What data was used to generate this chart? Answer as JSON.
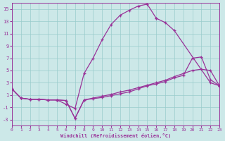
{
  "xlabel": "Windchill (Refroidissement éolien,°C)",
  "background_color": "#cce8e8",
  "line_color": "#993399",
  "grid_color": "#99cccc",
  "xlim": [
    0,
    23
  ],
  "ylim": [
    -4,
    16
  ],
  "xticks": [
    0,
    1,
    2,
    3,
    4,
    5,
    6,
    7,
    8,
    9,
    10,
    11,
    12,
    13,
    14,
    15,
    16,
    17,
    18,
    19,
    20,
    21,
    22,
    23
  ],
  "yticks": [
    -3,
    -1,
    1,
    3,
    5,
    7,
    9,
    11,
    13,
    15
  ],
  "curve1_x": [
    0,
    1,
    2,
    3,
    4,
    5,
    6,
    7,
    8,
    9,
    10,
    11,
    12,
    13,
    14,
    15,
    16
  ],
  "curve1_y": [
    2,
    0.5,
    0.3,
    0.3,
    0.2,
    0.2,
    -0.5,
    -1.2,
    4.5,
    7.0,
    10.0,
    12.5,
    14.0,
    14.8,
    15.5,
    15.8,
    13.5
  ],
  "curve2_x": [
    16,
    17,
    18,
    22,
    23
  ],
  "curve2_y": [
    13.5,
    12.8,
    11.5,
    3.0,
    2.5
  ],
  "curve3_x": [
    0,
    1,
    2,
    3,
    4,
    5,
    6,
    7,
    8,
    9,
    10,
    11,
    12,
    13,
    14,
    15,
    16,
    17,
    18,
    19,
    20,
    21,
    22,
    23
  ],
  "curve3_y": [
    2,
    0.5,
    0.3,
    0.3,
    0.2,
    0.2,
    0.1,
    -2.8,
    0.2,
    0.4,
    0.6,
    0.9,
    1.2,
    1.5,
    2.0,
    2.5,
    2.8,
    3.2,
    3.8,
    4.2,
    7.0,
    7.2,
    3.5,
    2.5
  ],
  "curve4_x": [
    0,
    1,
    2,
    3,
    4,
    5,
    6,
    7,
    8,
    9,
    10,
    11,
    12,
    13,
    14,
    15,
    16,
    17,
    18,
    19,
    20,
    21,
    22,
    23
  ],
  "curve4_y": [
    2,
    0.5,
    0.3,
    0.3,
    0.2,
    0.2,
    0.1,
    -2.8,
    0.2,
    0.5,
    0.8,
    1.1,
    1.5,
    1.8,
    2.2,
    2.6,
    3.0,
    3.4,
    4.0,
    4.5,
    5.0,
    5.2,
    5.0,
    2.5
  ]
}
